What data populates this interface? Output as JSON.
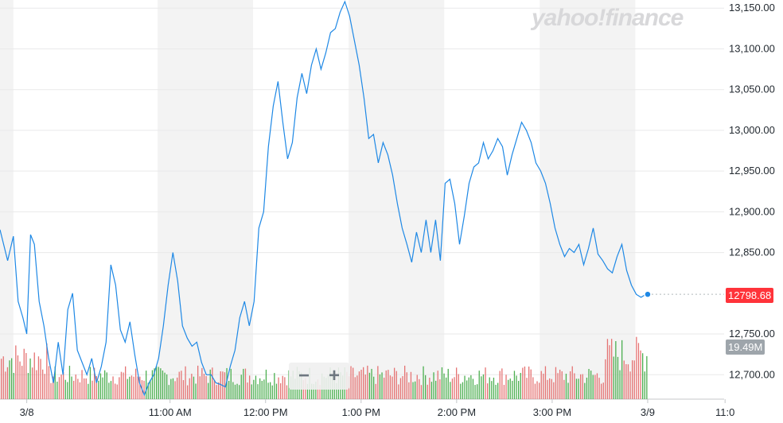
{
  "brand": {
    "name": "yahoo!finance"
  },
  "zoom": {
    "minus_label": "−",
    "plus_label": "+"
  },
  "badges": {
    "price_label": "12798.68",
    "volume_label": "19.49M"
  },
  "colors": {
    "line": "#1e88e5",
    "volume_up": "#4caf50",
    "volume_down": "#e57373",
    "band": "#f3f3f3",
    "price_badge": "#ff333a"
  },
  "chart_data": {
    "type": "line",
    "ylim": [
      12670,
      13160
    ],
    "yticks": [
      13150,
      13100,
      13050,
      13000,
      12950,
      12900,
      12850,
      12750,
      12700
    ],
    "ytick_labels": [
      "13,150.00",
      "13,100.00",
      "13,050.00",
      "13,000.00",
      "12,950.00",
      "12,900.00",
      "12,850.00",
      "12,750.00",
      "12,700.00"
    ],
    "xlim": [
      9.22,
      16.8
    ],
    "xticks": [
      {
        "x": 9.5,
        "label": "3/8"
      },
      {
        "x": 11.0,
        "label": "11:00 AM"
      },
      {
        "x": 12.0,
        "label": "12:00 PM"
      },
      {
        "x": 13.0,
        "label": "1:00 PM"
      },
      {
        "x": 14.0,
        "label": "2:00 PM"
      },
      {
        "x": 15.0,
        "label": "3:00 PM"
      },
      {
        "x": 16.0,
        "label": "3/9"
      },
      {
        "x": 16.81,
        "label": "11:0"
      }
    ],
    "bands": [
      [
        9.22,
        9.36
      ],
      [
        10.87,
        11.87
      ],
      [
        12.87,
        13.87
      ],
      [
        14.87,
        15.87
      ]
    ],
    "last_price": 12798.68,
    "last_volume": "19.49M",
    "x": [
      9.22,
      9.3,
      9.36,
      9.41,
      9.46,
      9.5,
      9.54,
      9.58,
      9.63,
      9.68,
      9.73,
      9.78,
      9.83,
      9.88,
      9.93,
      9.98,
      10.03,
      10.08,
      10.13,
      10.18,
      10.23,
      10.28,
      10.33,
      10.38,
      10.43,
      10.48,
      10.53,
      10.58,
      10.63,
      10.68,
      10.73,
      10.78,
      10.83,
      10.88,
      10.93,
      10.98,
      11.03,
      11.08,
      11.13,
      11.18,
      11.23,
      11.28,
      11.33,
      11.38,
      11.43,
      11.48,
      11.53,
      11.58,
      11.63,
      11.68,
      11.73,
      11.78,
      11.83,
      11.88,
      11.93,
      11.98,
      12.03,
      12.08,
      12.13,
      12.18,
      12.23,
      12.28,
      12.33,
      12.38,
      12.43,
      12.48,
      12.53,
      12.58,
      12.63,
      12.68,
      12.73,
      12.78,
      12.83,
      12.88,
      12.93,
      12.98,
      13.03,
      13.08,
      13.13,
      13.18,
      13.23,
      13.28,
      13.33,
      13.38,
      13.43,
      13.48,
      13.53,
      13.58,
      13.63,
      13.68,
      13.73,
      13.78,
      13.83,
      13.88,
      13.93,
      13.98,
      14.03,
      14.08,
      14.13,
      14.18,
      14.23,
      14.28,
      14.33,
      14.38,
      14.43,
      14.48,
      14.53,
      14.58,
      14.63,
      14.68,
      14.73,
      14.78,
      14.83,
      14.88,
      14.93,
      14.98,
      15.03,
      15.08,
      15.13,
      15.18,
      15.23,
      15.28,
      15.33,
      15.38,
      15.43,
      15.48,
      15.53,
      15.58,
      15.63,
      15.68,
      15.73,
      15.78,
      15.83,
      15.88,
      15.93,
      15.98,
      16.0
    ],
    "y": [
      12878,
      12840,
      12870,
      12790,
      12770,
      12750,
      12872,
      12860,
      12790,
      12760,
      12720,
      12690,
      12740,
      12700,
      12780,
      12800,
      12730,
      12715,
      12700,
      12720,
      12690,
      12710,
      12740,
      12835,
      12810,
      12755,
      12740,
      12765,
      12725,
      12690,
      12675,
      12690,
      12700,
      12720,
      12760,
      12810,
      12850,
      12815,
      12760,
      12745,
      12735,
      12740,
      12715,
      12700,
      12700,
      12690,
      12688,
      12685,
      12710,
      12730,
      12770,
      12790,
      12760,
      12790,
      12880,
      12900,
      12980,
      13030,
      13060,
      13010,
      12965,
      12985,
      13040,
      13070,
      13045,
      13080,
      13100,
      13075,
      13095,
      13120,
      13125,
      13145,
      13158,
      13140,
      13110,
      13080,
      13040,
      12990,
      12995,
      12960,
      12985,
      12970,
      12945,
      12910,
      12880,
      12860,
      12838,
      12875,
      12850,
      12890,
      12850,
      12890,
      12840,
      12935,
      12940,
      12910,
      12860,
      12895,
      12935,
      12955,
      12960,
      12985,
      12965,
      12975,
      12990,
      12980,
      12945,
      12970,
      12990,
      13010,
      13000,
      12985,
      12960,
      12950,
      12935,
      12910,
      12880,
      12860,
      12845,
      12855,
      12850,
      12860,
      12835,
      12855,
      12880,
      12848,
      12840,
      12830,
      12825,
      12845,
      12860,
      12828,
      12810,
      12798.68,
      12795,
      12798.68,
      12798.68
    ]
  }
}
